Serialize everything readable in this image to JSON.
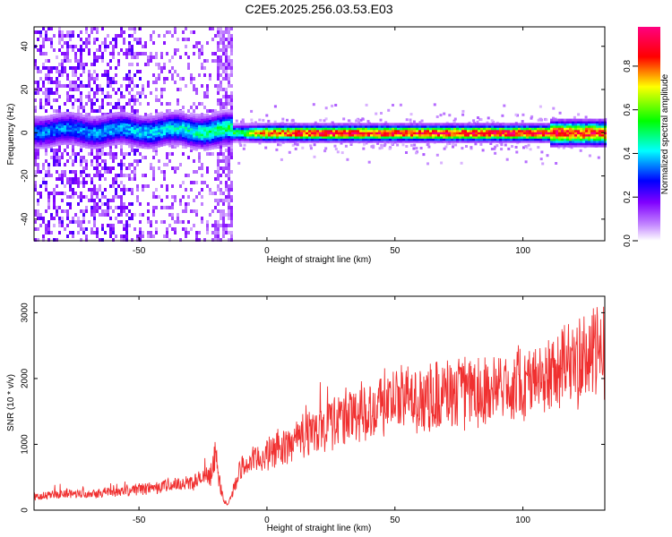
{
  "title": "C2E5.2025.256.03.53.E03",
  "chart_data": [
    {
      "type": "heatmap",
      "xlabel": "Height of straight line (km)",
      "ylabel": "Frequency (Hz)",
      "xlim": [
        -91,
        132
      ],
      "ylim": [
        -50,
        49
      ],
      "xticks": [
        -50,
        0,
        50,
        100
      ],
      "yticks": [
        -40,
        -20,
        0,
        20,
        40
      ],
      "colorbar": {
        "label": "Normalized spectral amplitude",
        "range": [
          0,
          0.98
        ],
        "ticks": [
          0.0,
          0.2,
          0.4,
          0.6,
          0.8
        ],
        "colormap": [
          "#ffffff",
          "#8000ff",
          "#0000ff",
          "#00ffff",
          "#00ff00",
          "#ffff00",
          "#ff0000",
          "#ff0080"
        ]
      },
      "dominant_frequency_hz": 0,
      "broadband_noise_region_km": [
        -91,
        -14
      ],
      "ridge_samples": [
        {
          "x": -85,
          "amplitude": 0.35
        },
        {
          "x": -60,
          "amplitude": 0.38
        },
        {
          "x": -40,
          "amplitude": 0.42
        },
        {
          "x": -20,
          "amplitude": 0.5
        },
        {
          "x": -10,
          "amplitude": 0.55
        },
        {
          "x": 0,
          "amplitude": 0.85
        },
        {
          "x": 20,
          "amplitude": 0.9
        },
        {
          "x": 50,
          "amplitude": 0.92
        },
        {
          "x": 80,
          "amplitude": 0.93
        },
        {
          "x": 100,
          "amplitude": 0.93
        },
        {
          "x": 120,
          "amplitude": 0.9
        },
        {
          "x": 132,
          "amplitude": 0.88
        }
      ]
    },
    {
      "type": "line",
      "xlabel": "Height of straight line (km)",
      "ylabel": "SNR (10 * v/v)",
      "xlim": [
        -91,
        132
      ],
      "ylim": [
        0,
        3250
      ],
      "xticks": [
        -50,
        0,
        50,
        100
      ],
      "yticks": [
        0,
        1000,
        2000,
        3000
      ],
      "color": "#f03030",
      "series": [
        {
          "x": [
            -91,
            -80,
            -70,
            -60,
            -50,
            -40,
            -30,
            -25,
            -22,
            -20,
            -19,
            -17,
            -15,
            -13,
            -10,
            -5,
            0,
            10,
            20,
            30,
            40,
            50,
            60,
            70,
            80,
            90,
            100,
            110,
            115,
            120,
            125,
            130,
            132
          ],
          "y": [
            200,
            250,
            260,
            280,
            320,
            370,
            420,
            480,
            520,
            900,
            500,
            150,
            80,
            350,
            650,
            750,
            850,
            1050,
            1250,
            1400,
            1550,
            1650,
            1700,
            1750,
            1800,
            1850,
            1950,
            2050,
            2150,
            2250,
            2350,
            2450,
            2400
          ]
        }
      ]
    }
  ]
}
